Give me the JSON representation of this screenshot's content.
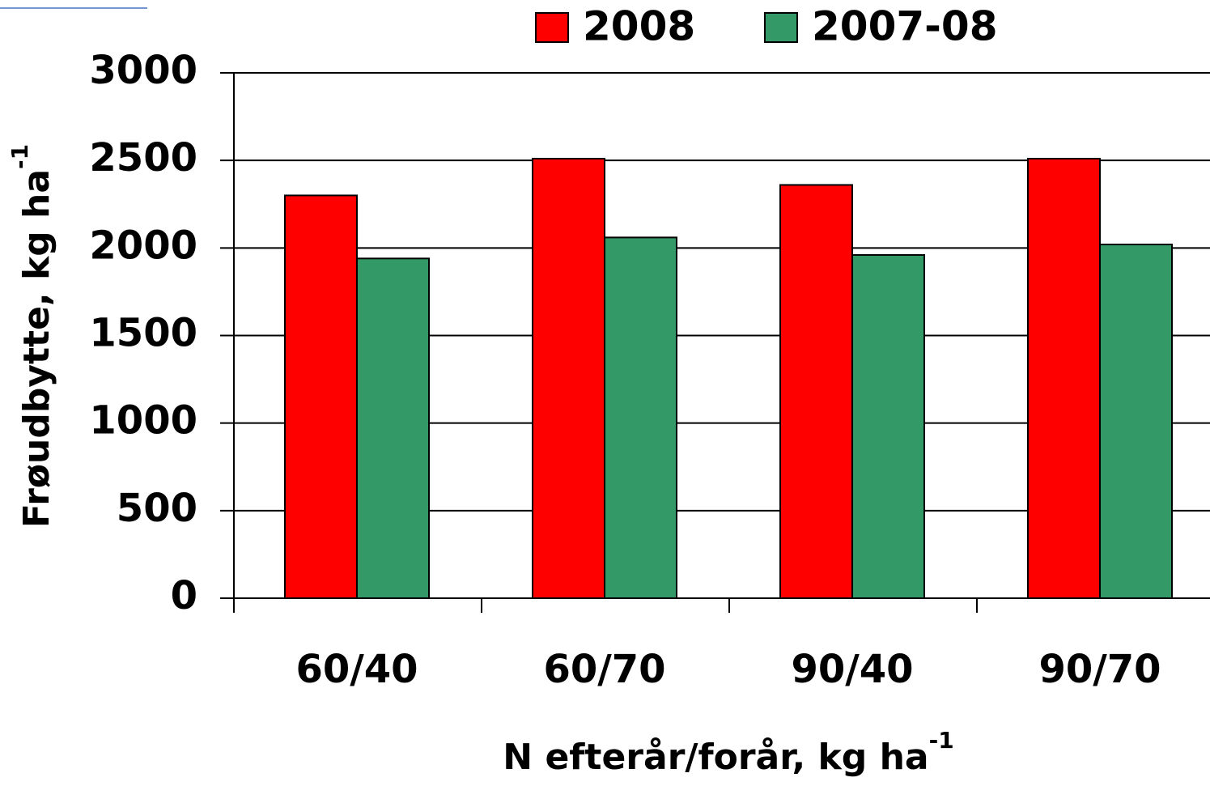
{
  "chart_data": {
    "type": "bar",
    "x_label": "N efterår/forår, kg ha",
    "x_label_sup": "-1",
    "y_label": "Frøudbytte, kg ha",
    "y_label_sup": "-1",
    "categories": [
      "60/40",
      "60/70",
      "90/40",
      "90/70"
    ],
    "series": [
      {
        "name": "2008",
        "color": "#ff0000",
        "values": [
          2300,
          2510,
          2360,
          2510
        ]
      },
      {
        "name": "2007-08",
        "color": "#339966",
        "values": [
          1940,
          2060,
          1960,
          2020
        ]
      }
    ],
    "ylim": [
      0,
      3000
    ],
    "yticks": [
      0,
      500,
      1000,
      1500,
      2000,
      2500,
      3000
    ],
    "grid": true,
    "legend": "top"
  }
}
